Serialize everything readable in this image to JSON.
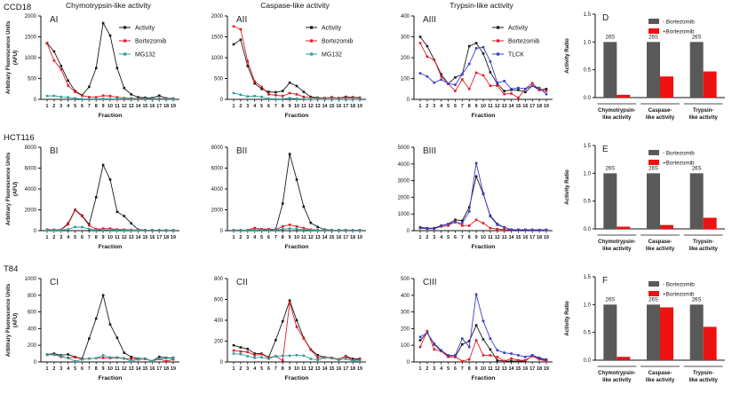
{
  "figure": {
    "rows": [
      {
        "label": "CCD18"
      },
      {
        "label": "HCT116"
      },
      {
        "label": "T84"
      }
    ]
  },
  "colors": {
    "activity": "#1a1a1a",
    "bortezomib": "#e01b22",
    "mg132": "#2e9e9e",
    "tlck": "#3c3ccc",
    "bar_gray": "#595959",
    "bar_red": "#ee1111",
    "axis": "#111111"
  },
  "fractions": [
    1,
    2,
    3,
    4,
    5,
    6,
    7,
    8,
    9,
    10,
    11,
    12,
    13,
    14,
    15,
    16,
    17,
    18,
    19
  ],
  "chart_data": [
    {
      "type": "line",
      "panel_tag": "AI",
      "title": "Chymotrypsin-like activity",
      "xlabel": "Fraction",
      "ylabel": "Arbitrary Fluorescence Units",
      "ylabel2": "(AFU)",
      "ylim": [
        0,
        2000
      ],
      "yticks": [
        0,
        500,
        1000,
        1500,
        2000
      ],
      "legend": true,
      "series": [
        {
          "name": "Activity",
          "color": "activity",
          "values": [
            1350,
            1150,
            800,
            450,
            200,
            100,
            300,
            750,
            1830,
            1530,
            750,
            270,
            120,
            50,
            40,
            30,
            90,
            25,
            20
          ]
        },
        {
          "name": "Bortezomib",
          "color": "bortezomib",
          "values": [
            1340,
            930,
            720,
            330,
            180,
            90,
            55,
            50,
            90,
            80,
            50,
            30,
            25,
            20,
            20,
            15,
            20,
            15,
            15
          ]
        },
        {
          "name": "MG132",
          "color": "mg132",
          "values": [
            80,
            85,
            60,
            50,
            25,
            10,
            10,
            10,
            15,
            10,
            10,
            10,
            10,
            5,
            5,
            5,
            5,
            5,
            5
          ]
        }
      ]
    },
    {
      "type": "line",
      "panel_tag": "AII",
      "title": "Caspase-like activity",
      "xlabel": "Fraction",
      "ylabel": "",
      "ylabel2": "",
      "ylim": [
        0,
        2000
      ],
      "yticks": [
        0,
        500,
        1000,
        1500,
        2000
      ],
      "legend": true,
      "series": [
        {
          "name": "Activity",
          "color": "activity",
          "values": [
            1320,
            1430,
            800,
            380,
            250,
            180,
            170,
            200,
            400,
            320,
            180,
            60,
            40,
            30,
            50,
            30,
            60,
            50,
            40
          ]
        },
        {
          "name": "Bortezomib",
          "color": "bortezomib",
          "values": [
            1750,
            1680,
            910,
            430,
            300,
            120,
            100,
            80,
            150,
            120,
            60,
            40,
            30,
            30,
            40,
            30,
            40,
            40,
            30
          ]
        },
        {
          "name": "MG132",
          "color": "mg132",
          "values": [
            150,
            110,
            70,
            80,
            60,
            15,
            10,
            10,
            30,
            15,
            10,
            5,
            5,
            5,
            5,
            5,
            5,
            5,
            5
          ]
        }
      ]
    },
    {
      "type": "line",
      "panel_tag": "AIII",
      "title": "Trypsin-like activity",
      "xlabel": "Fraction",
      "ylabel": "",
      "ylabel2": "",
      "ylim": [
        0,
        400
      ],
      "yticks": [
        0,
        100,
        200,
        300,
        400
      ],
      "legend": true,
      "series": [
        {
          "name": "Activity",
          "color": "activity",
          "values": [
            300,
            255,
            190,
            120,
            75,
            105,
            120,
            255,
            270,
            220,
            130,
            75,
            40,
            45,
            45,
            35,
            65,
            45,
            50
          ]
        },
        {
          "name": "Bortezomib",
          "color": "bortezomib",
          "values": [
            270,
            205,
            190,
            110,
            75,
            40,
            95,
            50,
            128,
            115,
            65,
            65,
            25,
            28,
            8,
            50,
            78,
            45,
            40
          ]
        },
        {
          "name": "TLCK",
          "color": "tlck",
          "values": [
            125,
            110,
            80,
            95,
            75,
            70,
            120,
            170,
            245,
            250,
            182,
            80,
            88,
            50,
            55,
            50,
            65,
            55,
            25
          ]
        }
      ]
    },
    {
      "type": "bar",
      "panel_tag": "D",
      "ylabel": "Activity Ratio",
      "ylim": [
        0,
        1.5
      ],
      "yticks": [
        "0.0",
        "0.5",
        "1.0",
        "1.5"
      ],
      "categories": [
        [
          "Chymotrypsin-",
          "like activity"
        ],
        [
          "Caspase-",
          "like activity"
        ],
        [
          "Trypsin-",
          "like activity"
        ]
      ],
      "annotations": [
        "26S",
        "26S",
        "26S"
      ],
      "series": [
        {
          "name": "- Bortezomib",
          "color": "bar_gray",
          "values": [
            1.0,
            1.0,
            1.0
          ]
        },
        {
          "name": "+Bortezomib",
          "color": "bar_red",
          "values": [
            0.05,
            0.38,
            0.47
          ]
        }
      ]
    },
    {
      "type": "line",
      "panel_tag": "BI",
      "title": "",
      "xlabel": "Fraction",
      "ylabel": "Arbitrary Fluorescence Units",
      "ylabel2": "(AFU)",
      "ylim": [
        0,
        8000
      ],
      "yticks": [
        0,
        2000,
        4000,
        6000,
        8000
      ],
      "legend": false,
      "series": [
        {
          "name": "Activity",
          "color": "activity",
          "values": [
            100,
            80,
            90,
            700,
            2000,
            1450,
            600,
            3200,
            6300,
            4900,
            1800,
            1400,
            700,
            100,
            60,
            50,
            50,
            40,
            40
          ]
        },
        {
          "name": "Bortezomib",
          "color": "bortezomib",
          "values": [
            90,
            70,
            80,
            600,
            1950,
            1380,
            500,
            150,
            200,
            200,
            120,
            100,
            80,
            60,
            50,
            40,
            40,
            30,
            30
          ]
        },
        {
          "name": "MG132",
          "color": "mg132",
          "values": [
            50,
            40,
            50,
            120,
            350,
            330,
            150,
            80,
            80,
            70,
            60,
            50,
            40,
            30,
            30,
            30,
            30,
            30,
            30
          ]
        }
      ]
    },
    {
      "type": "line",
      "panel_tag": "BII",
      "title": "",
      "xlabel": "Fraction",
      "ylabel": "",
      "ylabel2": "",
      "ylim": [
        0,
        8000
      ],
      "yticks": [
        0,
        2000,
        4000,
        6000,
        8000
      ],
      "legend": false,
      "series": [
        {
          "name": "Activity",
          "color": "activity",
          "values": [
            60,
            50,
            60,
            80,
            70,
            80,
            120,
            2600,
            7350,
            4900,
            2300,
            750,
            350,
            100,
            60,
            50,
            60,
            40,
            50
          ]
        },
        {
          "name": "Bortezomib",
          "color": "bortezomib",
          "values": [
            60,
            50,
            60,
            260,
            150,
            150,
            100,
            400,
            560,
            400,
            250,
            100,
            60,
            50,
            40,
            40,
            50,
            30,
            40
          ]
        },
        {
          "name": "MG132",
          "color": "mg132",
          "values": [
            40,
            30,
            40,
            50,
            60,
            60,
            50,
            150,
            200,
            150,
            100,
            50,
            40,
            30,
            30,
            30,
            30,
            20,
            30
          ]
        }
      ]
    },
    {
      "type": "line",
      "panel_tag": "BIII",
      "title": "",
      "xlabel": "Fraction",
      "ylabel": "",
      "ylabel2": "",
      "ylim": [
        0,
        5000
      ],
      "yticks": [
        0,
        1000,
        2000,
        3000,
        4000,
        5000
      ],
      "legend": false,
      "series": [
        {
          "name": "Activity",
          "color": "activity",
          "values": [
            200,
            150,
            150,
            300,
            400,
            650,
            600,
            1400,
            3250,
            2200,
            900,
            400,
            200,
            60,
            50,
            50,
            50,
            40,
            50
          ]
        },
        {
          "name": "Bortezomib",
          "color": "bortezomib",
          "values": [
            150,
            120,
            120,
            250,
            300,
            550,
            300,
            300,
            650,
            450,
            150,
            100,
            60,
            50,
            50,
            50,
            40,
            40,
            40
          ]
        },
        {
          "name": "TLCK",
          "color": "tlck",
          "values": [
            150,
            120,
            120,
            280,
            400,
            500,
            450,
            1150,
            4050,
            2250,
            850,
            350,
            200,
            60,
            50,
            50,
            50,
            40,
            40
          ]
        }
      ]
    },
    {
      "type": "bar",
      "panel_tag": "E",
      "ylabel": "Activity Ratio",
      "ylim": [
        0,
        1.5
      ],
      "yticks": [
        "0.0",
        "0.5",
        "1.0",
        "1.5"
      ],
      "categories": [
        [
          "Chymotrypsin-",
          "like activity"
        ],
        [
          "Caspase-",
          "like activity"
        ],
        [
          "Trypsin-",
          "like activity"
        ]
      ],
      "annotations": [
        "26S",
        "26S",
        "26S"
      ],
      "series": [
        {
          "name": "- Bortezomib",
          "color": "bar_gray",
          "values": [
            1.0,
            1.0,
            1.0
          ]
        },
        {
          "name": "+Bortezomib",
          "color": "bar_red",
          "values": [
            0.04,
            0.07,
            0.2
          ]
        }
      ]
    },
    {
      "type": "line",
      "panel_tag": "CI",
      "title": "",
      "xlabel": "Fraction",
      "ylabel": "Arbitrary Fluorescence Units",
      "ylabel2": "(AFU)",
      "ylim": [
        0,
        1000
      ],
      "yticks": [
        0,
        200,
        400,
        600,
        800,
        1000
      ],
      "legend": false,
      "series": [
        {
          "name": "Activity",
          "color": "activity",
          "values": [
            90,
            100,
            80,
            90,
            60,
            40,
            280,
            520,
            800,
            450,
            290,
            110,
            60,
            40,
            40,
            10,
            60,
            50,
            50
          ]
        },
        {
          "name": "Bortezomib",
          "color": "bortezomib",
          "values": [
            85,
            90,
            60,
            50,
            55,
            35,
            40,
            45,
            50,
            45,
            50,
            40,
            35,
            30,
            35,
            10,
            35,
            10,
            30
          ]
        },
        {
          "name": "MG132",
          "color": "mg132",
          "values": [
            90,
            85,
            70,
            45,
            10,
            30,
            40,
            45,
            80,
            55,
            55,
            45,
            5,
            35,
            40,
            10,
            40,
            45,
            45
          ]
        }
      ]
    },
    {
      "type": "line",
      "panel_tag": "CII",
      "title": "",
      "xlabel": "Fraction",
      "ylabel": "",
      "ylabel2": "",
      "ylim": [
        0,
        800
      ],
      "yticks": [
        0,
        200,
        400,
        600,
        800
      ],
      "legend": false,
      "series": [
        {
          "name": "Activity",
          "color": "activity",
          "values": [
            160,
            140,
            125,
            80,
            80,
            45,
            210,
            390,
            590,
            400,
            230,
            120,
            65,
            45,
            40,
            25,
            55,
            30,
            30
          ]
        },
        {
          "name": "Bortezomib",
          "color": "bortezomib",
          "values": [
            110,
            100,
            95,
            65,
            75,
            40,
            55,
            15,
            570,
            335,
            225,
            115,
            40,
            45,
            40,
            25,
            50,
            15,
            25
          ]
        },
        {
          "name": "MG132",
          "color": "mg132",
          "values": [
            80,
            75,
            55,
            40,
            45,
            30,
            55,
            60,
            60,
            65,
            60,
            30,
            20,
            40,
            35,
            20,
            30,
            10,
            10
          ]
        }
      ]
    },
    {
      "type": "line",
      "panel_tag": "CIII",
      "title": "",
      "xlabel": "Fraction",
      "ylabel": "",
      "ylabel2": "",
      "ylim": [
        0,
        500
      ],
      "yticks": [
        0,
        100,
        200,
        300,
        400,
        500
      ],
      "legend": false,
      "series": [
        {
          "name": "Activity",
          "color": "activity",
          "values": [
            130,
            175,
            105,
            65,
            35,
            30,
            105,
            125,
            220,
            135,
            75,
            10,
            5,
            5,
            5,
            5,
            40,
            20,
            10
          ]
        },
        {
          "name": "Bortezomib",
          "color": "bortezomib",
          "values": [
            90,
            185,
            75,
            65,
            30,
            30,
            5,
            15,
            130,
            40,
            40,
            30,
            5,
            20,
            10,
            10,
            35,
            15,
            5
          ]
        },
        {
          "name": "TLCK",
          "color": "tlck",
          "values": [
            150,
            175,
            110,
            70,
            40,
            40,
            140,
            90,
            405,
            245,
            140,
            70,
            55,
            50,
            40,
            30,
            40,
            25,
            15
          ]
        }
      ]
    },
    {
      "type": "bar",
      "panel_tag": "F",
      "ylabel": "Activity Ratio",
      "ylim": [
        0,
        1.5
      ],
      "yticks": [
        "0.0",
        "0.5",
        "1.0",
        "1.5"
      ],
      "categories": [
        [
          "Chymotrypsin-",
          "like activity"
        ],
        [
          "Caspase-",
          "like activity"
        ],
        [
          "Trypsin-",
          "like activity"
        ]
      ],
      "annotations": [
        "26S",
        "26S",
        "26S"
      ],
      "series": [
        {
          "name": "- Bortezomib",
          "color": "bar_gray",
          "values": [
            1.0,
            1.0,
            1.0
          ]
        },
        {
          "name": "+Bortezomib",
          "color": "bar_red",
          "values": [
            0.06,
            0.95,
            0.6
          ]
        }
      ]
    }
  ]
}
